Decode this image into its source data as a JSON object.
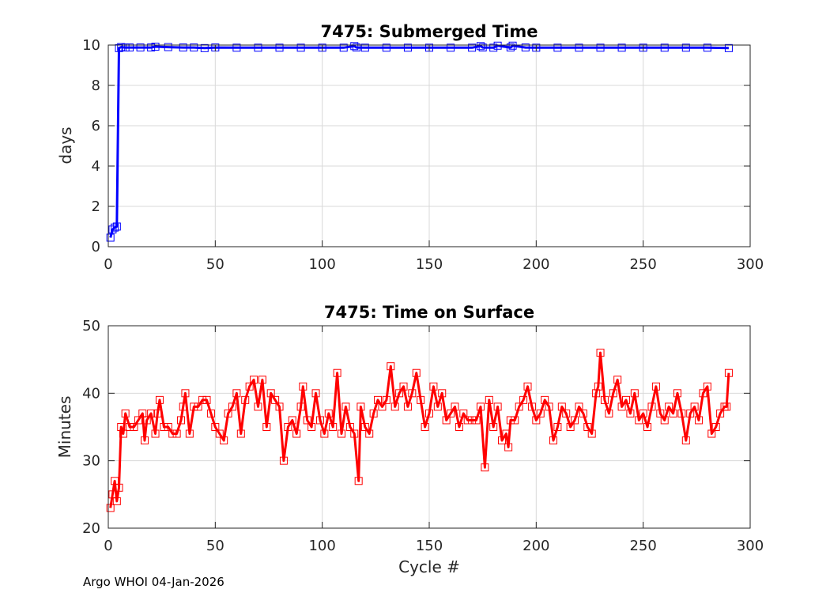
{
  "footer_text": "Argo WHOI 04-Jan-2026",
  "chart_data": [
    {
      "type": "line",
      "title": "7475: Submerged Time",
      "xlabel": "",
      "ylabel": "days",
      "xlim": [
        0,
        300
      ],
      "ylim": [
        0,
        10
      ],
      "xticks": [
        0,
        50,
        100,
        150,
        200,
        250,
        300
      ],
      "yticks": [
        0,
        2,
        4,
        6,
        8,
        10
      ],
      "xtick_labels": [
        "0",
        "50",
        "100",
        "150",
        "200",
        "250",
        "300"
      ],
      "ytick_labels": [
        "0",
        "2",
        "4",
        "6",
        "8",
        "10"
      ],
      "grid": true,
      "color": "#0000ff",
      "marker": "square",
      "series": [
        {
          "name": "Submerged Time",
          "x": [
            1,
            2,
            3,
            4,
            5,
            6,
            8,
            10,
            15,
            20,
            22,
            28,
            35,
            40,
            45,
            50,
            60,
            70,
            80,
            90,
            100,
            110,
            115,
            116,
            120,
            130,
            140,
            150,
            160,
            170,
            174,
            175,
            180,
            182,
            188,
            189,
            195,
            200,
            210,
            220,
            230,
            240,
            250,
            260,
            270,
            280,
            290
          ],
          "values": [
            0.45,
            0.85,
            0.95,
            1.0,
            9.85,
            9.9,
            9.88,
            9.88,
            9.88,
            9.88,
            9.92,
            9.9,
            9.88,
            9.88,
            9.85,
            9.88,
            9.87,
            9.87,
            9.87,
            9.87,
            9.87,
            9.87,
            9.95,
            9.88,
            9.87,
            9.87,
            9.87,
            9.87,
            9.87,
            9.87,
            9.95,
            9.88,
            9.87,
            9.97,
            9.88,
            9.97,
            9.88,
            9.87,
            9.87,
            9.87,
            9.87,
            9.87,
            9.87,
            9.87,
            9.87,
            9.87,
            9.85
          ]
        }
      ]
    },
    {
      "type": "line",
      "title": "7475: Time on Surface",
      "xlabel": "Cycle #",
      "ylabel": "Minutes",
      "xlim": [
        0,
        300
      ],
      "ylim": [
        20,
        50
      ],
      "xticks": [
        0,
        50,
        100,
        150,
        200,
        250,
        300
      ],
      "yticks": [
        20,
        30,
        40,
        50
      ],
      "xtick_labels": [
        "0",
        "50",
        "100",
        "150",
        "200",
        "250",
        "300"
      ],
      "ytick_labels": [
        "20",
        "30",
        "40",
        "50"
      ],
      "grid": true,
      "color": "#ff0000",
      "marker": "square",
      "series": [
        {
          "name": "Time on Surface",
          "x": [
            1,
            2,
            3,
            4,
            5,
            6,
            7,
            8,
            10,
            12,
            14,
            16,
            17,
            18,
            20,
            22,
            23,
            24,
            26,
            28,
            30,
            32,
            34,
            35,
            36,
            38,
            40,
            42,
            44,
            46,
            48,
            50,
            52,
            54,
            56,
            58,
            60,
            62,
            64,
            66,
            68,
            70,
            72,
            74,
            76,
            78,
            80,
            82,
            84,
            86,
            88,
            90,
            91,
            93,
            95,
            97,
            99,
            101,
            103,
            105,
            107,
            109,
            111,
            113,
            115,
            117,
            118,
            120,
            122,
            124,
            126,
            128,
            130,
            132,
            134,
            136,
            138,
            140,
            142,
            144,
            146,
            148,
            150,
            152,
            154,
            156,
            158,
            160,
            162,
            164,
            166,
            168,
            170,
            172,
            174,
            176,
            178,
            180,
            182,
            184,
            186,
            187,
            188,
            190,
            192,
            194,
            196,
            198,
            200,
            202,
            204,
            206,
            208,
            210,
            212,
            214,
            216,
            218,
            220,
            222,
            224,
            226,
            228,
            229,
            230,
            232,
            234,
            236,
            238,
            240,
            242,
            244,
            246,
            248,
            250,
            252,
            254,
            256,
            258,
            260,
            262,
            264,
            266,
            268,
            270,
            272,
            274,
            276,
            278,
            280,
            282,
            284,
            286,
            288,
            289,
            290
          ],
          "values": [
            23,
            25,
            27,
            24,
            26,
            35,
            34,
            37,
            35,
            35,
            36,
            37,
            33,
            36,
            37,
            34,
            37,
            39,
            35,
            35,
            34,
            34,
            36,
            38,
            40,
            34,
            38,
            38,
            39,
            39,
            37,
            35,
            34,
            33,
            37,
            38,
            40,
            34,
            39,
            41,
            42,
            38,
            42,
            35,
            40,
            39,
            38,
            30,
            35,
            36,
            34,
            38,
            41,
            36,
            35,
            40,
            36,
            34,
            37,
            35,
            43,
            34,
            38,
            35,
            34,
            27,
            38,
            35,
            34,
            37,
            39,
            38,
            39,
            44,
            38,
            40,
            41,
            38,
            40,
            43,
            39,
            35,
            37,
            41,
            38,
            40,
            36,
            37,
            38,
            35,
            37,
            36,
            36,
            36,
            38,
            29,
            39,
            35,
            38,
            33,
            34,
            32,
            36,
            36,
            38,
            39,
            41,
            38,
            36,
            37,
            39,
            38,
            33,
            35,
            38,
            37,
            35,
            36,
            38,
            37,
            35,
            34,
            40,
            41,
            46,
            39,
            37,
            40,
            42,
            38,
            39,
            37,
            40,
            36,
            37,
            35,
            38,
            41,
            37,
            36,
            38,
            37,
            40,
            37,
            33,
            37,
            38,
            36,
            40,
            41,
            34,
            35,
            37,
            38,
            38,
            43
          ]
        }
      ]
    }
  ]
}
